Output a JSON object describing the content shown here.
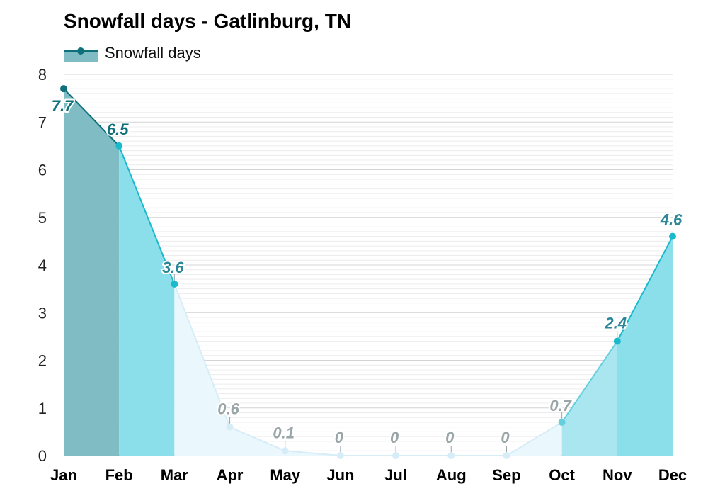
{
  "chart_data": {
    "type": "area",
    "title": "Snowfall days - Gatlinburg, TN",
    "legend": [
      {
        "label": "Snowfall days",
        "color": "#0f6f7a",
        "position": "top-left"
      }
    ],
    "categories": [
      "Jan",
      "Feb",
      "Mar",
      "Apr",
      "May",
      "Jun",
      "Jul",
      "Aug",
      "Sep",
      "Oct",
      "Nov",
      "Dec"
    ],
    "series": [
      {
        "name": "Snowfall days",
        "values": [
          7.7,
          6.5,
          3.6,
          0.6,
          0.1,
          0,
          0,
          0,
          0,
          0.7,
          2.4,
          4.6
        ]
      }
    ],
    "y_ticks": [
      "0",
      "1",
      "2",
      "3",
      "4",
      "5",
      "6",
      "7",
      "8"
    ],
    "ylim": [
      0,
      8
    ],
    "grid": true,
    "colors": {
      "dark_fill": "#7fbcc3",
      "mid_fill": "#8adfea",
      "light_fill": "#eaf7fd",
      "dark_line": "#0f6f7a",
      "mid_line": "#1ab9cc",
      "light_line": "#d6edf7",
      "label_dark": "#0f6f7a",
      "label_mid": "#2a8796",
      "label_light": "#9aa5a8"
    }
  }
}
